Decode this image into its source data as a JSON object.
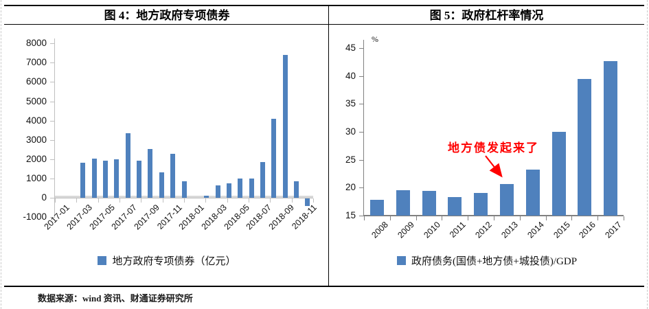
{
  "page": {
    "source_note": "数据来源：wind 资讯、财通证券研究所"
  },
  "colors": {
    "bar": "#4F81BD",
    "annotation_red": "#FF0000",
    "axis_gray_light": "#BFBFBF",
    "axis_gray_dark": "#808080",
    "zero_line_gray": "#D9D9D9"
  },
  "chart_data": [
    {
      "type": "bar",
      "title": "图 4：地方政府专项债券",
      "legend": [
        "地方政府专项债券（亿元）"
      ],
      "categories": [
        "2017-01",
        "2017-02",
        "2017-03",
        "2017-04",
        "2017-05",
        "2017-06",
        "2017-07",
        "2017-08",
        "2017-09",
        "2017-10",
        "2017-11",
        "2017-12",
        "2018-01",
        "2018-02",
        "2018-03",
        "2018-04",
        "2018-05",
        "2018-06",
        "2018-07",
        "2018-08",
        "2018-09",
        "2018-10",
        "2018-11"
      ],
      "values": [
        0,
        0,
        1810,
        2040,
        1920,
        1990,
        3330,
        1920,
        2520,
        1300,
        2270,
        850,
        0,
        110,
        640,
        760,
        990,
        990,
        1850,
        4100,
        7400,
        840,
        -400
      ],
      "xlabel": "",
      "ylabel": "",
      "ylim": [
        -1000,
        8000
      ],
      "yticks": [
        8000,
        7000,
        6000,
        5000,
        4000,
        3000,
        2000,
        1000,
        0,
        -1000
      ],
      "xtick_label_every": 2,
      "grid": false,
      "legend_position": "bottom"
    },
    {
      "type": "bar",
      "title": "图 5：政府杠杆率情况",
      "legend": [
        "政府债务(国债+地方债+城投债)/GDP"
      ],
      "unit_label": "%",
      "categories": [
        "2008",
        "2009",
        "2010",
        "2011",
        "2012",
        "2013",
        "2014",
        "2015",
        "2016",
        "2017"
      ],
      "values": [
        17.8,
        19.5,
        19.4,
        18.3,
        19.1,
        20.7,
        23.3,
        30.0,
        39.5,
        42.7
      ],
      "xlabel": "",
      "ylabel": "%",
      "ylim": [
        15,
        45
      ],
      "yticks": [
        45,
        40,
        35,
        30,
        25,
        20,
        15
      ],
      "xtick_label_every": 1,
      "grid": false,
      "legend_position": "bottom",
      "annotation": {
        "text": "地方债发起来了",
        "points_to": "2013"
      }
    }
  ]
}
